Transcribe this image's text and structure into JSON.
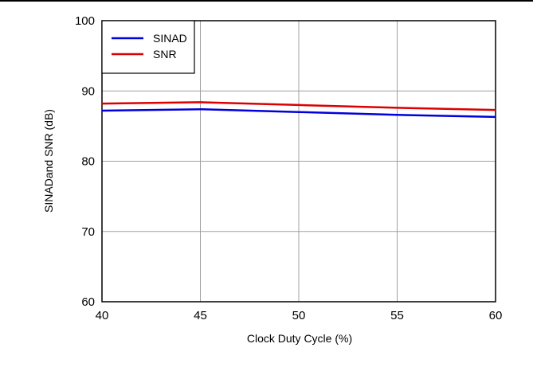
{
  "chart_data": {
    "type": "line",
    "title": "",
    "xlabel": "Clock Duty Cycle (%)",
    "ylabel": "SINADand SNR (dB)",
    "xlim": [
      40,
      60
    ],
    "ylim": [
      60,
      100
    ],
    "x_ticks": [
      40,
      45,
      50,
      55,
      60
    ],
    "y_ticks": [
      60,
      70,
      80,
      90,
      100
    ],
    "grid": true,
    "legend_position": "top-left",
    "series": [
      {
        "name": "SINAD",
        "color": "#0000dd",
        "x": [
          40,
          45,
          50,
          55,
          60
        ],
        "y": [
          87.2,
          87.4,
          87.0,
          86.6,
          86.3
        ]
      },
      {
        "name": "SNR",
        "color": "#dd0000",
        "x": [
          40,
          45,
          50,
          55,
          60
        ],
        "y": [
          88.2,
          88.4,
          88.0,
          87.6,
          87.3
        ]
      }
    ]
  }
}
